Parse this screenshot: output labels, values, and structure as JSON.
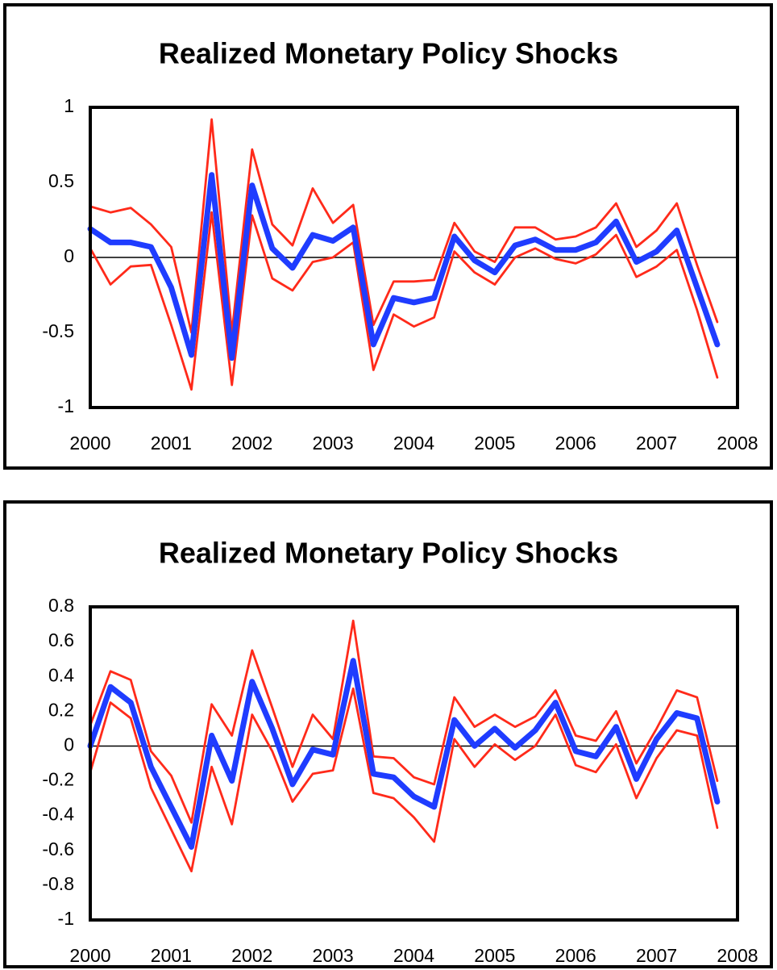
{
  "chart_data": [
    {
      "type": "line",
      "title": "Realized Monetary Policy Shocks",
      "x": [
        2000,
        2000.25,
        2000.5,
        2000.75,
        2001,
        2001.25,
        2001.5,
        2001.75,
        2002,
        2002.25,
        2002.5,
        2002.75,
        2003,
        2003.25,
        2003.5,
        2003.75,
        2004,
        2004.25,
        2004.5,
        2004.75,
        2005,
        2005.25,
        2005.5,
        2005.75,
        2006,
        2006.25,
        2006.5,
        2006.75,
        2007,
        2007.25,
        2007.5,
        2007.75
      ],
      "xlim": [
        2000,
        2008
      ],
      "xticks": [
        2000,
        2001,
        2002,
        2003,
        2004,
        2005,
        2006,
        2007,
        2008
      ],
      "ylim": [
        -1,
        1
      ],
      "yticks": [
        -1,
        -0.5,
        0,
        0.5,
        1
      ],
      "grid": false,
      "series": [
        {
          "color": "#ff2a1a",
          "values": [
            0.34,
            0.3,
            0.33,
            0.22,
            0.07,
            -0.5,
            0.92,
            -0.5,
            0.72,
            0.22,
            0.08,
            0.46,
            0.23,
            0.35,
            -0.45,
            -0.16,
            -0.16,
            -0.15,
            0.23,
            0.04,
            -0.03,
            0.2,
            0.2,
            0.12,
            0.14,
            0.2,
            0.36,
            0.07,
            0.18,
            0.36,
            -0.05,
            -0.43
          ]
        },
        {
          "color": "#ff2a1a",
          "values": [
            0.06,
            -0.18,
            -0.06,
            -0.05,
            -0.45,
            -0.88,
            0.3,
            -0.85,
            0.28,
            -0.14,
            -0.22,
            -0.03,
            0,
            0.1,
            -0.75,
            -0.38,
            -0.46,
            -0.4,
            0.04,
            -0.1,
            -0.18,
            0,
            0.06,
            -0.01,
            -0.04,
            0.02,
            0.15,
            -0.13,
            -0.06,
            0.05,
            -0.35,
            -0.8
          ]
        },
        {
          "color": "#1f3cff",
          "values": [
            0.19,
            0.1,
            0.1,
            0.07,
            -0.2,
            -0.65,
            0.55,
            -0.67,
            0.48,
            0.06,
            -0.07,
            0.15,
            0.11,
            0.2,
            -0.58,
            -0.27,
            -0.3,
            -0.27,
            0.14,
            -0.02,
            -0.1,
            0.08,
            0.12,
            0.05,
            0.05,
            0.1,
            0.24,
            -0.03,
            0.04,
            0.18,
            -0.2,
            -0.58
          ]
        }
      ]
    },
    {
      "type": "line",
      "title": "Realized Monetary Policy Shocks",
      "x": [
        2000,
        2000.25,
        2000.5,
        2000.75,
        2001,
        2001.25,
        2001.5,
        2001.75,
        2002,
        2002.25,
        2002.5,
        2002.75,
        2003,
        2003.25,
        2003.5,
        2003.75,
        2004,
        2004.25,
        2004.5,
        2004.75,
        2005,
        2005.25,
        2005.5,
        2005.75,
        2006,
        2006.25,
        2006.5,
        2006.75,
        2007,
        2007.25,
        2007.5,
        2007.75
      ],
      "xlim": [
        2000,
        2008
      ],
      "xticks": [
        2000,
        2001,
        2002,
        2003,
        2004,
        2005,
        2006,
        2007,
        2008
      ],
      "ylim": [
        -1,
        0.8
      ],
      "yticks": [
        -1,
        -0.8,
        -0.6,
        -0.4,
        -0.2,
        0,
        0.2,
        0.4,
        0.6,
        0.8
      ],
      "grid": false,
      "series": [
        {
          "color": "#ff2a1a",
          "values": [
            0.12,
            0.43,
            0.38,
            -0.03,
            -0.17,
            -0.44,
            0.24,
            0.06,
            0.55,
            0.22,
            -0.12,
            0.18,
            0.04,
            0.72,
            -0.06,
            -0.07,
            -0.18,
            -0.22,
            0.28,
            0.11,
            0.18,
            0.11,
            0.17,
            0.32,
            0.06,
            0.03,
            0.2,
            -0.1,
            0.1,
            0.32,
            0.28,
            -0.2
          ]
        },
        {
          "color": "#ff2a1a",
          "values": [
            -0.15,
            0.25,
            0.16,
            -0.24,
            -0.48,
            -0.72,
            -0.12,
            -0.45,
            0.18,
            -0.03,
            -0.32,
            -0.16,
            -0.14,
            0.33,
            -0.27,
            -0.3,
            -0.41,
            -0.55,
            0.04,
            -0.12,
            0.01,
            -0.08,
            0,
            0.18,
            -0.11,
            -0.15,
            0.01,
            -0.3,
            -0.07,
            0.09,
            0.06,
            -0.47
          ]
        },
        {
          "color": "#1f3cff",
          "values": [
            0,
            0.34,
            0.25,
            -0.12,
            -0.35,
            -0.58,
            0.06,
            -0.2,
            0.37,
            0.1,
            -0.22,
            -0.02,
            -0.05,
            0.49,
            -0.16,
            -0.18,
            -0.29,
            -0.35,
            0.15,
            0,
            0.1,
            -0.01,
            0.09,
            0.25,
            -0.03,
            -0.06,
            0.11,
            -0.19,
            0.04,
            0.19,
            0.16,
            -0.32
          ]
        }
      ]
    }
  ]
}
